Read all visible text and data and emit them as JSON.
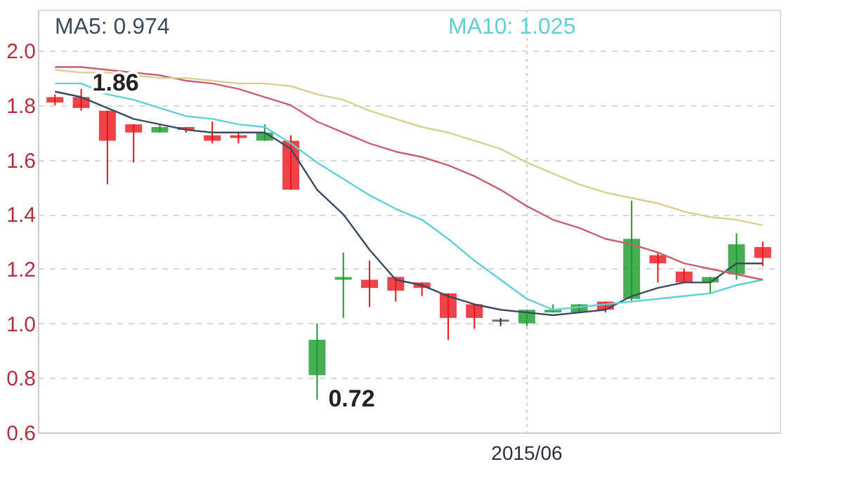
{
  "chart_data": {
    "type": "candlestick",
    "categories": [
      null,
      null,
      null,
      null,
      null,
      null,
      null,
      null,
      null,
      null,
      null,
      null,
      null,
      null,
      null,
      null,
      null,
      null,
      "2015/06",
      null,
      null,
      null,
      null,
      null,
      null,
      null,
      null,
      null
    ],
    "ohlc": [
      [
        1.83,
        1.84,
        1.8,
        1.81
      ],
      [
        1.83,
        1.86,
        1.78,
        1.79
      ],
      [
        1.78,
        1.78,
        1.51,
        1.67
      ],
      [
        1.73,
        1.73,
        1.59,
        1.7
      ],
      [
        1.7,
        1.73,
        1.7,
        1.72
      ],
      [
        1.72,
        1.72,
        1.7,
        1.71
      ],
      [
        1.69,
        1.74,
        1.66,
        1.67
      ],
      [
        1.69,
        1.7,
        1.66,
        1.68
      ],
      [
        1.67,
        1.73,
        1.67,
        1.7
      ],
      [
        1.67,
        1.69,
        1.49,
        1.49
      ],
      [
        0.81,
        1.0,
        0.72,
        0.94
      ],
      [
        1.16,
        1.26,
        1.02,
        1.17
      ],
      [
        1.16,
        1.23,
        1.06,
        1.13
      ],
      [
        1.17,
        1.17,
        1.08,
        1.12
      ],
      [
        1.15,
        1.15,
        1.1,
        1.13
      ],
      [
        1.11,
        1.11,
        0.94,
        1.02
      ],
      [
        1.07,
        1.07,
        0.98,
        1.02
      ],
      [
        1.01,
        1.02,
        0.99,
        1.01
      ],
      [
        1.0,
        1.05,
        0.98,
        1.05
      ],
      [
        1.04,
        1.07,
        1.04,
        1.05
      ],
      [
        1.04,
        1.07,
        1.04,
        1.07
      ],
      [
        1.08,
        1.08,
        1.04,
        1.05
      ],
      [
        1.09,
        1.45,
        1.08,
        1.31
      ],
      [
        1.25,
        1.26,
        1.15,
        1.22
      ],
      [
        1.19,
        1.2,
        1.15,
        1.15
      ],
      [
        1.15,
        1.17,
        1.11,
        1.17
      ],
      [
        1.18,
        1.33,
        1.16,
        1.29
      ],
      [
        1.28,
        1.3,
        1.21,
        1.24
      ]
    ],
    "colors": [
      "#e8141c",
      "#e8141c",
      "#e8141c",
      "#e8141c",
      "#1a9a2a",
      "#e8141c",
      "#e8141c",
      "#e8141c",
      "#1a9a2a",
      "#e8141c",
      "#1a9a2a",
      "#1a9a2a",
      "#e8141c",
      "#e8141c",
      "#e8141c",
      "#e8141c",
      "#e8141c",
      "#333333",
      "#1a9a2a",
      "#1a9a2a",
      "#1a9a2a",
      "#e8141c",
      "#1a9a2a",
      "#e8141c",
      "#e8141c",
      "#1a9a2a",
      "#1a9a2a",
      "#e8141c"
    ],
    "series": [
      {
        "name": "MA5: 0.974",
        "type": "line",
        "color": "#3c4a5e",
        "values": [
          1.85,
          1.83,
          1.79,
          1.75,
          1.73,
          1.71,
          1.7,
          1.7,
          1.7,
          1.64,
          1.49,
          1.4,
          1.27,
          1.16,
          1.14,
          1.1,
          1.07,
          1.05,
          1.04,
          1.03,
          1.04,
          1.05,
          1.1,
          1.13,
          1.15,
          1.15,
          1.22,
          1.22
        ]
      },
      {
        "name": "MA10: 1.025",
        "type": "line",
        "color": "#5fd0d6",
        "values": [
          1.88,
          1.88,
          1.84,
          1.82,
          1.79,
          1.76,
          1.75,
          1.73,
          1.72,
          1.66,
          1.59,
          1.53,
          1.47,
          1.42,
          1.38,
          1.31,
          1.23,
          1.16,
          1.09,
          1.05,
          1.06,
          1.07,
          1.08,
          1.09,
          1.1,
          1.11,
          1.14,
          1.16
        ]
      },
      {
        "type": "line",
        "color": "#c86070",
        "values": [
          1.94,
          1.94,
          1.93,
          1.92,
          1.91,
          1.89,
          1.88,
          1.86,
          1.83,
          1.8,
          1.74,
          1.7,
          1.66,
          1.63,
          1.61,
          1.58,
          1.54,
          1.49,
          1.43,
          1.38,
          1.35,
          1.31,
          1.29,
          1.26,
          1.22,
          1.2,
          1.18,
          1.16
        ]
      },
      {
        "type": "line",
        "color": "#d8d090",
        "values": [
          1.93,
          1.92,
          1.92,
          1.91,
          1.9,
          1.9,
          1.89,
          1.88,
          1.88,
          1.87,
          1.84,
          1.82,
          1.78,
          1.75,
          1.72,
          1.7,
          1.67,
          1.64,
          1.59,
          1.55,
          1.51,
          1.48,
          1.46,
          1.44,
          1.41,
          1.39,
          1.38,
          1.36
        ]
      }
    ],
    "annotations": [
      {
        "text": "1.86",
        "y": 1.86
      },
      "0.72"
    ],
    "ylim": [
      0.6,
      2.15
    ],
    "yticks": [
      0.6,
      0.8,
      {
        "value": 1,
        "label": "1.0"
      },
      1.2,
      1.4,
      1.6,
      1.8,
      {
        "value": 2,
        "label": "2.0"
      }
    ],
    "grid": true,
    "line_style": "solid",
    "marker": "none"
  }
}
